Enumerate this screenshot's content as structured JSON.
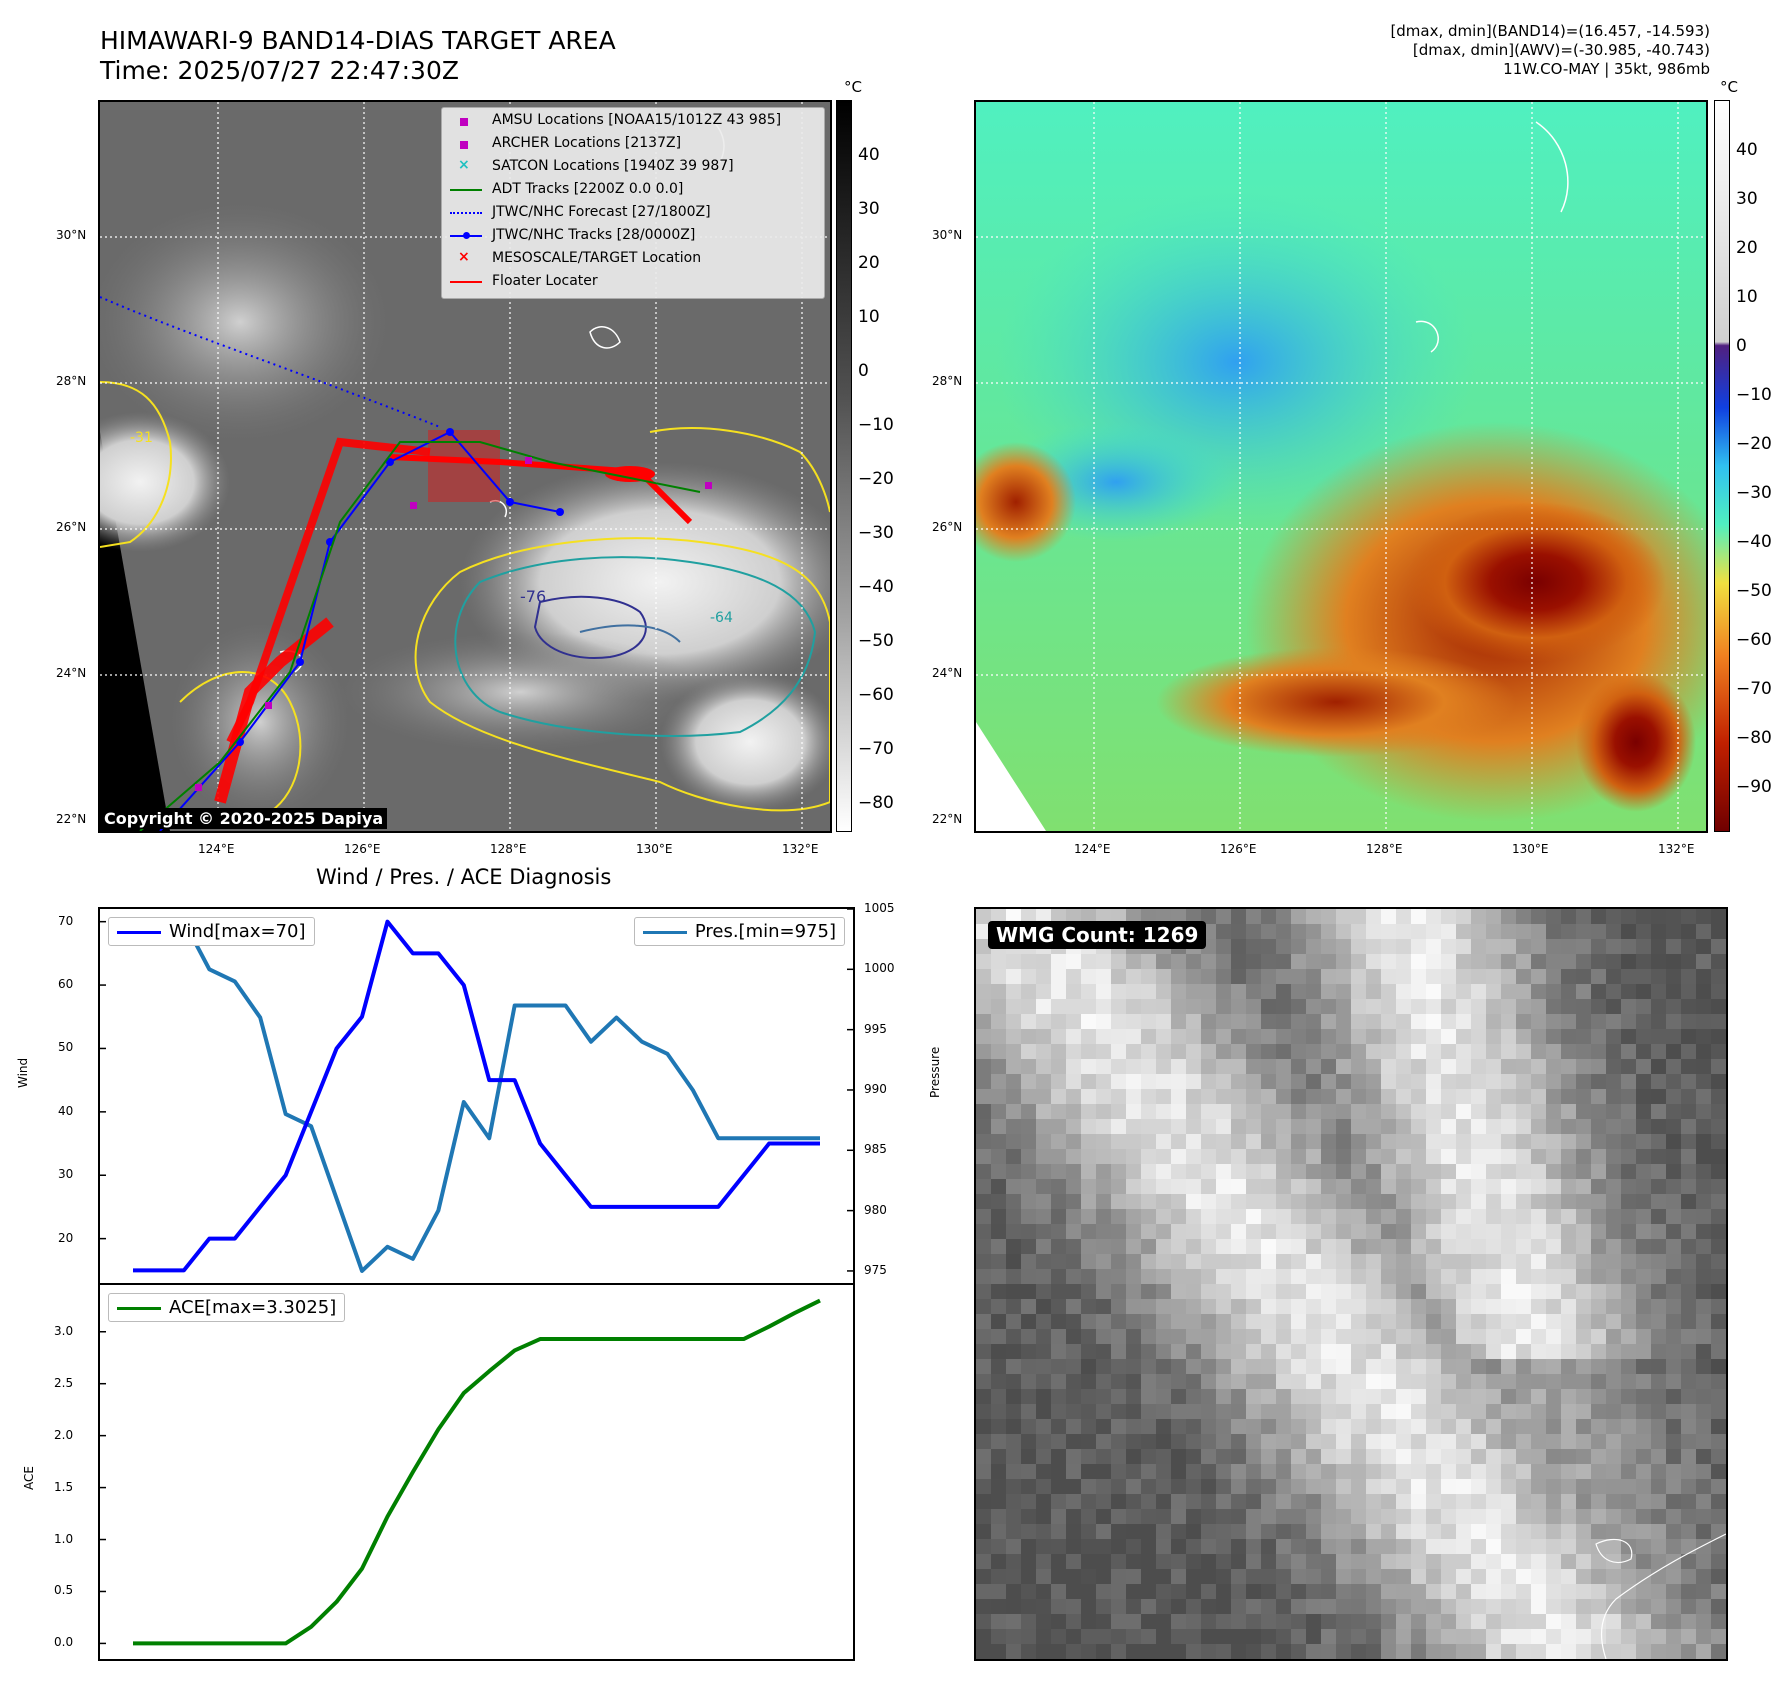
{
  "header": {
    "title_line1": "HIMAWARI-9 BAND14-DIAS TARGET AREA",
    "title_line2": "Time: 2025/07/27 22:47:30Z",
    "info_line1": "[dmax, dmin](BAND14)=(16.457, -14.593)",
    "info_line2": "[dmax, dmin](AWV)=(-30.985, -40.743)",
    "info_line3": "11W.CO-MAY | 35kt, 986mb"
  },
  "map_axes": {
    "lat_labels": [
      "30°N",
      "28°N",
      "26°N",
      "24°N",
      "22°N"
    ],
    "lon_labels": [
      "124°E",
      "126°E",
      "128°E",
      "130°E",
      "132°E"
    ]
  },
  "colorbar_left": {
    "unit": "°C",
    "ticks": [
      "40",
      "30",
      "20",
      "10",
      "0",
      "−10",
      "−20",
      "−30",
      "−40",
      "−50",
      "−60",
      "−70",
      "−80"
    ]
  },
  "colorbar_right": {
    "unit": "°C",
    "ticks": [
      "40",
      "30",
      "20",
      "10",
      "0",
      "−10",
      "−20",
      "−30",
      "−40",
      "−50",
      "−60",
      "−70",
      "−80",
      "−90"
    ]
  },
  "legend": {
    "items": [
      {
        "label": "AMSU Locations [NOAA15/1012Z 43 985]",
        "color": "#c000c0",
        "symbol": "square"
      },
      {
        "label": "ARCHER Locations [2137Z]",
        "color": "#c000c0",
        "symbol": "square"
      },
      {
        "label": "SATCON Locations [1940Z 39 987]",
        "color": "#20c0c0",
        "symbol": "x"
      },
      {
        "label": "ADT Tracks [2200Z 0.0 0.0]",
        "color": "#008000",
        "symbol": "line"
      },
      {
        "label": "JTWC/NHC Forecast [27/1800Z]",
        "color": "#0000ff",
        "symbol": "dotted"
      },
      {
        "label": "JTWC/NHC Tracks [28/0000Z]",
        "color": "#0000ff",
        "symbol": "line-dot"
      },
      {
        "label": "MESOSCALE/TARGET Location",
        "color": "#ff0000",
        "symbol": "x"
      },
      {
        "label": "Floater Locater",
        "color": "#ff0000",
        "symbol": "line"
      }
    ]
  },
  "contour_labels": [
    "-31",
    "-64",
    "-76"
  ],
  "copyright": "Copyright © 2020-2025 Dapiya",
  "wmg": {
    "label": "WMG Count: 1269"
  },
  "diagnosis": {
    "title": "Wind / Pres. / ACE Diagnosis",
    "wind_ylabel": "Wind",
    "pres_ylabel": "Pressure",
    "ace_ylabel": "ACE",
    "wind_legend": "Wind[max=70]",
    "pres_legend": "Pres.[min=975]",
    "ace_legend": "ACE[max=3.3025]",
    "wind_ticks": [
      "70",
      "60",
      "50",
      "40",
      "30",
      "20"
    ],
    "pres_ticks": [
      "1005",
      "1000",
      "995",
      "990",
      "985",
      "980",
      "975"
    ],
    "ace_ticks": [
      "3.0",
      "2.5",
      "2.0",
      "1.5",
      "1.0",
      "0.5",
      "0.0"
    ]
  },
  "chart_data": {
    "type": "line",
    "title": "Wind / Pres. / ACE Diagnosis",
    "x": [
      0,
      1,
      2,
      3,
      4,
      5,
      6,
      7,
      8,
      9,
      10,
      11,
      12,
      13,
      14,
      15,
      16,
      17,
      18,
      19,
      20,
      21,
      22,
      23,
      24,
      25,
      26,
      27
    ],
    "series": [
      {
        "name": "Wind[max=70]",
        "color": "#0000ff",
        "values": [
          15,
          15,
          15,
          20,
          20,
          25,
          30,
          40,
          50,
          55,
          70,
          65,
          65,
          60,
          45,
          45,
          35,
          30,
          25,
          25,
          25,
          25,
          25,
          25,
          30,
          35,
          35,
          35
        ]
      },
      {
        "name": "Pres.[min=975]",
        "color": "#1f77b4",
        "values": [
          1004,
          1004,
          1004,
          1000,
          999,
          996,
          988,
          987,
          981,
          975,
          977,
          976,
          980,
          989,
          986,
          997,
          997,
          997,
          994,
          996,
          994,
          993,
          990,
          986,
          986,
          986,
          986,
          986
        ]
      },
      {
        "name": "ACE[max=3.3025]",
        "color": "#008000",
        "values": [
          0,
          0,
          0,
          0,
          0,
          0,
          0,
          0.16,
          0.4,
          0.72,
          1.22,
          1.65,
          2.06,
          2.41,
          2.62,
          2.82,
          2.93,
          2.93,
          2.93,
          2.93,
          2.93,
          2.93,
          2.93,
          2.93,
          2.93,
          3.05,
          3.18,
          3.3
        ]
      }
    ],
    "wind_ylim": [
      13,
      72
    ],
    "pres_ylim": [
      974,
      1005
    ],
    "ace_ylim": [
      -0.15,
      3.45
    ]
  }
}
